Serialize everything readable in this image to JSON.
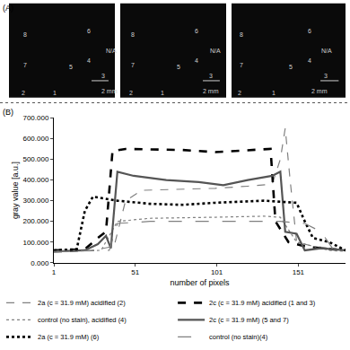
{
  "panel_a": {
    "label": "(A)",
    "images": [
      {
        "labels": [
          "8",
          "6",
          "N/A",
          "7",
          "5",
          "4",
          "3",
          "2",
          "1"
        ],
        "scale_bar": "2 mm"
      },
      {
        "labels": [
          "8",
          "6",
          "N/A",
          "7",
          "5",
          "4",
          "3",
          "2",
          "1"
        ],
        "scale_bar": "2 mm"
      },
      {
        "labels": [
          "8",
          "6",
          "N/A",
          "7",
          "5",
          "4",
          "3",
          "2",
          "1"
        ],
        "scale_bar": "2 mm"
      }
    ]
  },
  "chart_data": {
    "type": "line",
    "panel_label": "(B)",
    "x_label": "number of pixels",
    "y_label": "gray value [a.u.]",
    "xlim": [
      1,
      180
    ],
    "xticks": [
      1,
      51,
      101,
      151
    ],
    "ylim": [
      0,
      700
    ],
    "yticks": [
      {
        "value": 0,
        "label": "0.000"
      },
      {
        "value": 100,
        "label": "100.000"
      },
      {
        "value": 200,
        "label": "200.000"
      },
      {
        "value": 300,
        "label": "300.000"
      },
      {
        "value": 400,
        "label": "400.000"
      },
      {
        "value": 500,
        "label": "500.000"
      },
      {
        "value": 600,
        "label": "600.000"
      },
      {
        "value": 700,
        "label": "700.000"
      }
    ],
    "grid": false,
    "legend": "bottom",
    "series": [
      {
        "name": "2a (c = 31.9 mM) acidified (2)",
        "color": "#808080",
        "line_style": "dash",
        "x": [
          1,
          25,
          38,
          45,
          55,
          80,
          100,
          120,
          135,
          140,
          143,
          146,
          150,
          160,
          180
        ],
        "values": [
          50,
          60,
          80,
          300,
          350,
          355,
          360,
          370,
          380,
          500,
          650,
          400,
          100,
          80,
          60
        ]
      },
      {
        "name": "2c (c = 31.9 mM) acidified (1 and 3)",
        "color": "#000000",
        "line_style": "dash",
        "x": [
          1,
          20,
          28,
          33,
          37,
          45,
          60,
          80,
          100,
          120,
          134,
          137,
          145,
          155,
          165,
          180
        ],
        "values": [
          60,
          65,
          120,
          150,
          540,
          550,
          548,
          545,
          535,
          545,
          550,
          200,
          100,
          80,
          70,
          60
        ]
      },
      {
        "name": "control (no stain), acidified (4)",
        "color": "#808080",
        "line_style": "dot",
        "x": [
          1,
          30,
          40,
          60,
          100,
          130,
          140,
          150,
          170,
          180
        ],
        "values": [
          55,
          60,
          200,
          215,
          220,
          225,
          220,
          100,
          60,
          55
        ]
      },
      {
        "name": "2c (c = 31.9 mM) (5 and 7)",
        "color": "#555555",
        "line_style": "solid",
        "x": [
          1,
          20,
          28,
          33,
          36,
          40,
          50,
          70,
          90,
          105,
          120,
          135,
          140,
          143,
          150,
          155,
          165,
          180
        ],
        "values": [
          55,
          60,
          90,
          130,
          70,
          440,
          420,
          400,
          390,
          375,
          400,
          420,
          440,
          150,
          140,
          60,
          70,
          60
        ]
      },
      {
        "name": "2a (c = 31.9 mM) (6)",
        "color": "#000000",
        "line_style": "dot",
        "x": [
          1,
          15,
          20,
          25,
          40,
          60,
          80,
          100,
          130,
          150,
          155,
          160,
          170,
          180
        ],
        "values": [
          60,
          65,
          250,
          320,
          300,
          285,
          280,
          290,
          300,
          290,
          200,
          120,
          100,
          60
        ]
      },
      {
        "name": "control (no stain)(4)",
        "color": "#808080",
        "line_style": "longdash",
        "x": [
          1,
          35,
          40,
          60,
          100,
          140,
          155,
          165,
          172,
          180
        ],
        "values": [
          55,
          60,
          190,
          200,
          200,
          200,
          190,
          150,
          70,
          60
        ]
      }
    ]
  }
}
